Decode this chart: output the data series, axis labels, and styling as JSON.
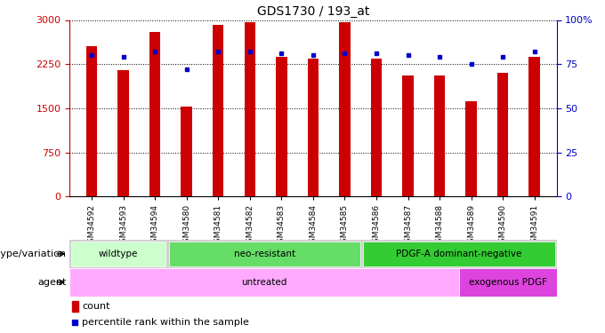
{
  "title": "GDS1730 / 193_at",
  "samples": [
    "GSM34592",
    "GSM34593",
    "GSM34594",
    "GSM34580",
    "GSM34581",
    "GSM34582",
    "GSM34583",
    "GSM34584",
    "GSM34585",
    "GSM34586",
    "GSM34587",
    "GSM34588",
    "GSM34589",
    "GSM34590",
    "GSM34591"
  ],
  "counts": [
    2550,
    2150,
    2800,
    1530,
    2920,
    2960,
    2380,
    2350,
    2960,
    2350,
    2050,
    2050,
    1620,
    2100,
    2380
  ],
  "percentiles": [
    80,
    79,
    82,
    72,
    82,
    82,
    81,
    80,
    81,
    81,
    80,
    79,
    75,
    79,
    82
  ],
  "ylim_left": [
    0,
    3000
  ],
  "ylim_right": [
    0,
    100
  ],
  "yticks_left": [
    0,
    750,
    1500,
    2250,
    3000
  ],
  "yticks_right": [
    0,
    25,
    50,
    75,
    100
  ],
  "bar_color": "#cc0000",
  "dot_color": "#0000cc",
  "plot_bg": "#ffffff",
  "genotype_groups": [
    {
      "label": "wildtype",
      "start": 0,
      "end": 3,
      "color": "#ccffcc"
    },
    {
      "label": "neo-resistant",
      "start": 3,
      "end": 9,
      "color": "#66dd66"
    },
    {
      "label": "PDGF-A dominant-negative",
      "start": 9,
      "end": 15,
      "color": "#33cc33"
    }
  ],
  "agent_groups": [
    {
      "label": "untreated",
      "start": 0,
      "end": 12,
      "color": "#ffaaff"
    },
    {
      "label": "exogenous PDGF",
      "start": 12,
      "end": 15,
      "color": "#dd44dd"
    }
  ],
  "row1_label": "genotype/variation",
  "row2_label": "agent",
  "legend_count_label": "count",
  "legend_pct_label": "percentile rank within the sample",
  "bar_width": 0.35
}
